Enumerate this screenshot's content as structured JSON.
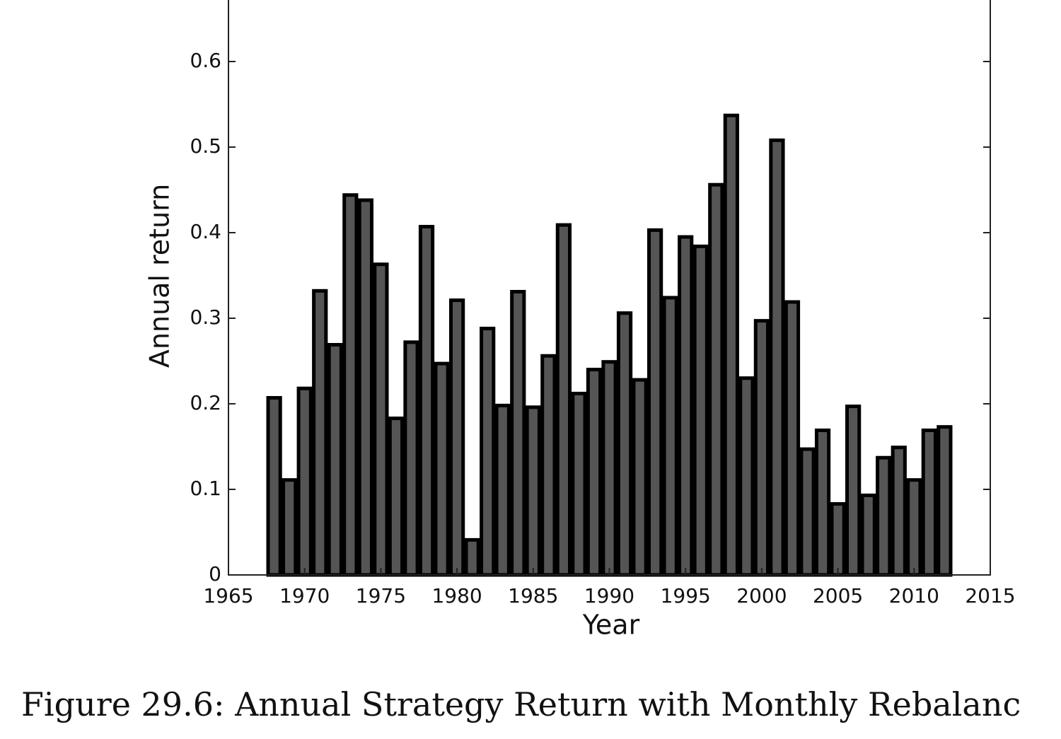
{
  "chart_data": {
    "type": "bar",
    "caption": "Figure 29.6: Annual Strategy Return with Monthly Rebalanc",
    "xlabel": "Year",
    "ylabel": "Annual return",
    "x": [
      1968,
      1969,
      1970,
      1971,
      1972,
      1973,
      1974,
      1975,
      1976,
      1977,
      1978,
      1979,
      1980,
      1981,
      1982,
      1983,
      1984,
      1985,
      1986,
      1987,
      1988,
      1989,
      1990,
      1991,
      1992,
      1993,
      1994,
      1995,
      1996,
      1997,
      1998,
      1999,
      2000,
      2001,
      2002,
      2003,
      2004,
      2005,
      2006,
      2007,
      2008,
      2009,
      2010,
      2011,
      2012
    ],
    "values": [
      0.207,
      0.111,
      0.218,
      0.332,
      0.269,
      0.444,
      0.438,
      0.363,
      0.183,
      0.272,
      0.407,
      0.247,
      0.321,
      0.041,
      0.288,
      0.198,
      0.331,
      0.196,
      0.256,
      0.409,
      0.212,
      0.24,
      0.249,
      0.306,
      0.228,
      0.403,
      0.324,
      0.395,
      0.384,
      0.456,
      0.537,
      0.23,
      0.297,
      0.508,
      0.319,
      0.147,
      0.169,
      0.083,
      0.197,
      0.093,
      0.137,
      0.149,
      0.111,
      0.169,
      0.173
    ],
    "color": "#555555",
    "xlim": [
      1965,
      2015
    ],
    "xticks": [
      1965,
      1970,
      1975,
      1980,
      1985,
      1990,
      1995,
      2000,
      2005,
      2010,
      2015
    ],
    "ylim": [
      0,
      0.7
    ],
    "yticks": [
      0,
      0.1,
      0.2,
      0.3,
      0.4,
      0.5,
      0.6
    ],
    "grid": false
  }
}
